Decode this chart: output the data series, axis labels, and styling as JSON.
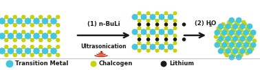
{
  "cyan": "#40C8E0",
  "yellow": "#C8D400",
  "black": "#1a1a1a",
  "orange_bond": "#D08828",
  "step1_line1": "(1) n-BuLi",
  "step1_line2": "Ultrasonication",
  "step2_text": "(2) H",
  "step2_sub": "2",
  "step2_end": "O",
  "legend_tm": "Transition Metal",
  "legend_ch": "Chalcogen",
  "legend_li": "Lithium",
  "fig_width": 3.78,
  "fig_height": 1.03,
  "dpi": 100
}
